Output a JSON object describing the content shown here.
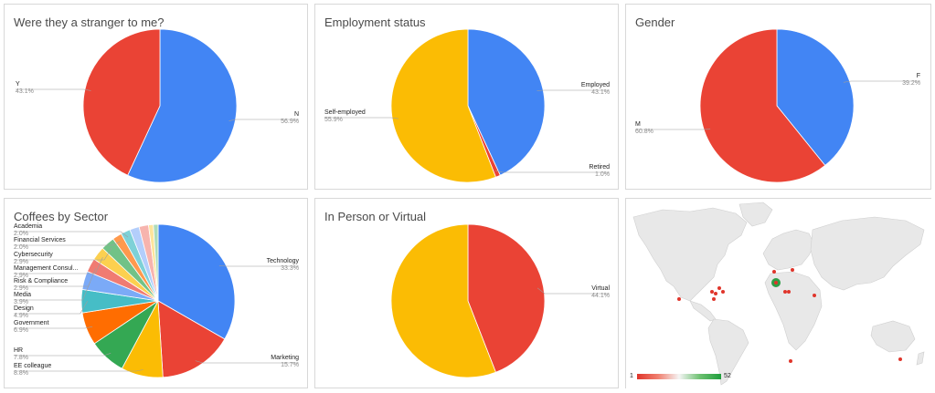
{
  "chart_data": [
    {
      "type": "pie",
      "title": "Were they a stranger to me?",
      "slices": [
        {
          "label": "N",
          "value": 56.9,
          "pct": "56.9%",
          "color": "#4285f4"
        },
        {
          "label": "Y",
          "value": 43.1,
          "pct": "43.1%",
          "color": "#ea4335"
        }
      ]
    },
    {
      "type": "pie",
      "title": "Employment status",
      "slices": [
        {
          "label": "Employed",
          "value": 43.1,
          "pct": "43.1%",
          "color": "#4285f4"
        },
        {
          "label": "Retired",
          "value": 1.0,
          "pct": "1.0%",
          "color": "#ea4335"
        },
        {
          "label": "Self-employed",
          "value": 55.9,
          "pct": "55.9%",
          "color": "#fbbc04"
        }
      ]
    },
    {
      "type": "pie",
      "title": "Gender",
      "slices": [
        {
          "label": "F",
          "value": 39.2,
          "pct": "39.2%",
          "color": "#4285f4"
        },
        {
          "label": "M",
          "value": 60.8,
          "pct": "60.8%",
          "color": "#ea4335"
        }
      ]
    },
    {
      "type": "pie",
      "title": "Coffees by Sector",
      "slices": [
        {
          "label": "Technology",
          "value": 33.3,
          "pct": "33.3%",
          "color": "#4285f4"
        },
        {
          "label": "Marketing",
          "value": 15.7,
          "pct": "15.7%",
          "color": "#ea4335"
        },
        {
          "label": "EE colleague",
          "value": 8.8,
          "pct": "8.8%",
          "color": "#fbbc04"
        },
        {
          "label": "HR",
          "value": 7.8,
          "pct": "7.8%",
          "color": "#34a853"
        },
        {
          "label": "Government",
          "value": 6.9,
          "pct": "6.9%",
          "color": "#ff6d01"
        },
        {
          "label": "Design",
          "value": 4.9,
          "pct": "4.9%",
          "color": "#46bdc6"
        },
        {
          "label": "Media",
          "value": 3.9,
          "pct": "3.9%",
          "color": "#7baaf7"
        },
        {
          "label": "Risk & Compliance",
          "value": 2.9,
          "pct": "2.9%",
          "color": "#f07b72"
        },
        {
          "label": "Management Consul...",
          "value": 2.9,
          "pct": "2.9%",
          "color": "#fcd04f"
        },
        {
          "label": "Cybersecurity",
          "value": 2.9,
          "pct": "2.9%",
          "color": "#71c287"
        },
        {
          "label": "Financial Services",
          "value": 2.0,
          "pct": "2.0%",
          "color": "#ff994d"
        },
        {
          "label": "Academia",
          "value": 2.0,
          "pct": "2.0%",
          "color": "#7ed1d7"
        },
        {
          "label": "",
          "value": 2.0,
          "pct": "",
          "color": "#b3cefb"
        },
        {
          "label": "",
          "value": 2.0,
          "pct": "",
          "color": "#f7b4ae"
        },
        {
          "label": "",
          "value": 1.0,
          "pct": "",
          "color": "#fde49b"
        },
        {
          "label": "",
          "value": 1.0,
          "pct": "",
          "color": "#aedcba"
        }
      ]
    },
    {
      "type": "pie",
      "title": "In Person or Virtual",
      "slices": [
        {
          "label": "Virtual",
          "value": 44.1,
          "pct": "44.1%",
          "color": "#ea4335"
        },
        {
          "label": "",
          "value": 55.9,
          "pct": "",
          "color": "#fbbc04"
        }
      ]
    },
    {
      "type": "map",
      "title": "",
      "legend": {
        "min": "1",
        "max": "52",
        "color_low": "#e0352b",
        "color_high": "#1e9e3c"
      }
    }
  ]
}
